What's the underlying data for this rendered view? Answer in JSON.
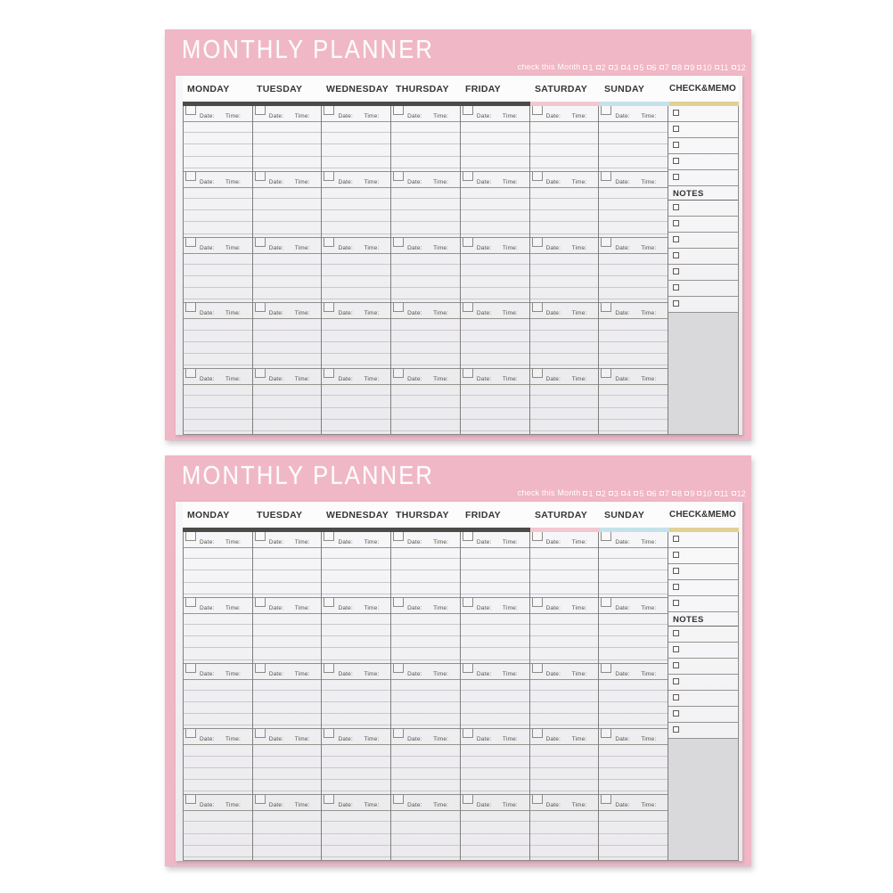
{
  "photo": {
    "background": "#ffffff",
    "pad_count": 2
  },
  "colors": {
    "pad_pink": "#f0b7c6",
    "paper": "#f2f1f3",
    "accent_dark": "#4c4b49",
    "accent_saturday": "#f3c7d2",
    "accent_sunday": "#c5e2ea",
    "accent_memo": "#e3d095",
    "ruled_line": "#c8c8ce",
    "memo_gray": "#d9d8db",
    "title_text": "#fcfcfd",
    "header_text": "#383633"
  },
  "planner": {
    "title": "MONTHLY PLANNER",
    "check_month_label": "check this Month",
    "months": [
      "1",
      "2",
      "3",
      "4",
      "5",
      "6",
      "7",
      "8",
      "9",
      "10",
      "11",
      "12"
    ],
    "weekdays": [
      "MONDAY",
      "TUESDAY",
      "WEDNESDAY",
      "THURSDAY",
      "FRIDAY",
      "SATURDAY",
      "SUNDAY"
    ],
    "memo_header": "CHECK&MEMO",
    "notes_label": "NOTES",
    "date_label": "Date:",
    "time_label": "Time:",
    "grid_rows": 5,
    "memo_checkboxes_above_notes": 5,
    "memo_checkboxes_below_notes": 7
  },
  "pads": [
    {
      "id": "planner-pad-1"
    },
    {
      "id": "planner-pad-2"
    }
  ]
}
